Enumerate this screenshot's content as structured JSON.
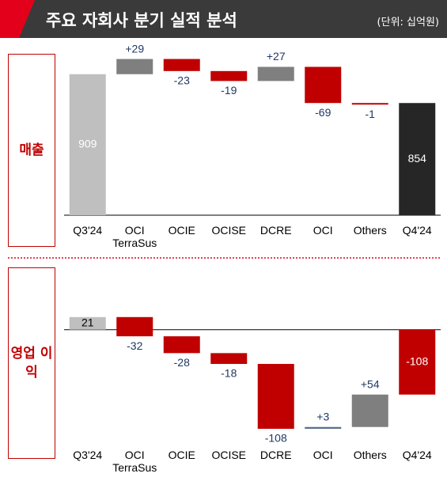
{
  "header": {
    "title": "주요 자회사 분기 실적 분석",
    "unit": "(단위: 십억원)"
  },
  "chart_data": [
    {
      "type": "waterfall",
      "title": "매출",
      "categories": [
        "Q3'24",
        "OCI TerraSus",
        "OCIE",
        "OCISE",
        "DCRE",
        "OCI",
        "Others",
        "Q4'24"
      ],
      "measure": [
        "absolute",
        "relative",
        "relative",
        "relative",
        "relative",
        "relative",
        "relative",
        "total"
      ],
      "values": [
        909,
        29,
        -23,
        -19,
        27,
        -69,
        -1,
        854
      ],
      "value_labels": [
        "909",
        "+29",
        "-23",
        "-19",
        "+27",
        "-69",
        "-1",
        "854"
      ],
      "colors": [
        "#bfbfbf",
        "#7f7f7f",
        "#c00000",
        "#c00000",
        "#7f7f7f",
        "#c00000",
        "#c00000",
        "#262626"
      ],
      "label_colors": [
        "#ffffff",
        "#1f3864",
        "#1f3864",
        "#1f3864",
        "#1f3864",
        "#1f3864",
        "#1f3864",
        "#ffffff"
      ],
      "ylim": [
        640,
        960
      ]
    },
    {
      "type": "waterfall",
      "title": "영업 이익",
      "categories": [
        "Q3'24",
        "OCI TerraSus",
        "OCIE",
        "OCISE",
        "DCRE",
        "OCI",
        "Others",
        "Q4'24"
      ],
      "measure": [
        "absolute",
        "relative",
        "relative",
        "relative",
        "relative",
        "relative",
        "relative",
        "total"
      ],
      "values": [
        21,
        -32,
        -28,
        -18,
        -108,
        3,
        54,
        -108
      ],
      "value_labels": [
        "21",
        "-32",
        "-28",
        "-18",
        "-108",
        "+3",
        "+54",
        "-108"
      ],
      "colors": [
        "#bfbfbf",
        "#c00000",
        "#c00000",
        "#c00000",
        "#c00000",
        "#5b7088",
        "#7f7f7f",
        "#c00000"
      ],
      "label_colors": [
        "#000000",
        "#1f3864",
        "#1f3864",
        "#1f3864",
        "#1f3864",
        "#1f3864",
        "#1f3864",
        "#ffffff"
      ],
      "ylim": [
        -190,
        80
      ]
    }
  ]
}
